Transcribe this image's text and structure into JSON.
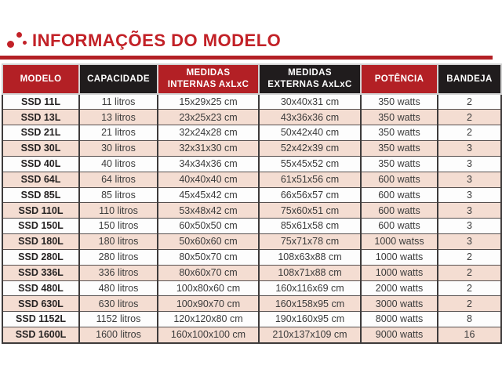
{
  "page": {
    "title": "INFORMAÇÕES DO MODELO",
    "accent_red": "#b32025",
    "title_red": "#c22127",
    "header_black": "#201c1d",
    "row_stripe_pink": "#f4ddd2",
    "logo_icon": "three-red-dots-logo"
  },
  "table": {
    "columns": [
      {
        "key": "model",
        "line1": "MODELO",
        "line2": "",
        "bg": "red"
      },
      {
        "key": "capacity",
        "line1": "CAPACIDADE",
        "line2": "",
        "bg": "black"
      },
      {
        "key": "internal",
        "line1": "MEDIDAS",
        "line2": "INTERNAS AxLxC",
        "bg": "red"
      },
      {
        "key": "external",
        "line1": "MEDIDAS",
        "line2": "EXTERNAS AxLxC",
        "bg": "black"
      },
      {
        "key": "power",
        "line1": "POTÊNCIA",
        "line2": "",
        "bg": "red"
      },
      {
        "key": "trays",
        "line1": "BANDEJA",
        "line2": "",
        "bg": "black"
      }
    ],
    "rows": [
      {
        "model": "SSD 11L",
        "capacity": "11 litros",
        "internal": "15x29x25 cm",
        "external": "30x40x31 cm",
        "power": "350 watts",
        "trays": "2"
      },
      {
        "model": "SSD 13L",
        "capacity": "13 litros",
        "internal": "23x25x23 cm",
        "external": "43x36x36 cm",
        "power": "350 watts",
        "trays": "2"
      },
      {
        "model": "SSD 21L",
        "capacity": "21 litros",
        "internal": "32x24x28 cm",
        "external": "50x42x40 cm",
        "power": "350 watts",
        "trays": "2"
      },
      {
        "model": "SSD 30L",
        "capacity": "30 litros",
        "internal": "32x31x30 cm",
        "external": "52x42x39 cm",
        "power": "350 watts",
        "trays": "3"
      },
      {
        "model": "SSD 40L",
        "capacity": "40 litros",
        "internal": "34x34x36 cm",
        "external": "55x45x52 cm",
        "power": "350 watts",
        "trays": "3"
      },
      {
        "model": "SSD 64L",
        "capacity": "64 litros",
        "internal": "40x40x40 cm",
        "external": "61x51x56 cm",
        "power": "600 watts",
        "trays": "3"
      },
      {
        "model": "SSD 85L",
        "capacity": "85 litros",
        "internal": "45x45x42 cm",
        "external": "66x56x57 cm",
        "power": "600 watts",
        "trays": "3"
      },
      {
        "model": "SSD 110L",
        "capacity": "110 litros",
        "internal": "53x48x42 cm",
        "external": "75x60x51 cm",
        "power": "600 watts",
        "trays": "3"
      },
      {
        "model": "SSD 150L",
        "capacity": "150 litros",
        "internal": "60x50x50 cm",
        "external": "85x61x58 cm",
        "power": "600 watts",
        "trays": "3"
      },
      {
        "model": "SSD 180L",
        "capacity": "180 litros",
        "internal": "50x60x60 cm",
        "external": "75x71x78 cm",
        "power": "1000 watss",
        "trays": "3"
      },
      {
        "model": "SSD 280L",
        "capacity": "280 litros",
        "internal": "80x50x70 cm",
        "external": "108x63x88 cm",
        "power": "1000 watts",
        "trays": "2"
      },
      {
        "model": "SSD 336L",
        "capacity": "336 litros",
        "internal": "80x60x70 cm",
        "external": "108x71x88 cm",
        "power": "1000 watts",
        "trays": "2"
      },
      {
        "model": "SSD 480L",
        "capacity": "480 litros",
        "internal": "100x80x60 cm",
        "external": "160x116x69 cm",
        "power": "2000 watts",
        "trays": "2"
      },
      {
        "model": "SSD 630L",
        "capacity": "630 litros",
        "internal": "100x90x70 cm",
        "external": "160x158x95 cm",
        "power": "3000 watts",
        "trays": "2"
      },
      {
        "model": "SSD 1152L",
        "capacity": "1152 litros",
        "internal": "120x120x80 cm",
        "external": "190x160x95 cm",
        "power": "8000 watts",
        "trays": "8"
      },
      {
        "model": "SSD 1600L",
        "capacity": "1600 litros",
        "internal": "160x100x100 cm",
        "external": "210x137x109 cm",
        "power": "9000 watts",
        "trays": "16"
      }
    ]
  }
}
